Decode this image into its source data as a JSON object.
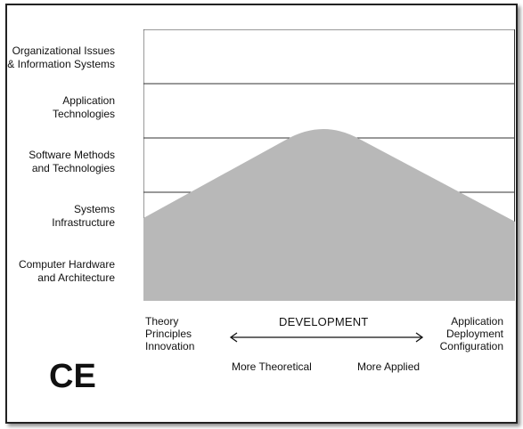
{
  "rows": [
    {
      "line1": "Organizational Issues",
      "line2": "& Information Systems"
    },
    {
      "line1": "Application",
      "line2": "Technologies"
    },
    {
      "line1": "Software Methods",
      "line2": "and Technologies"
    },
    {
      "line1": "Systems",
      "line2": "Infrastructure"
    },
    {
      "line1": "Computer Hardware",
      "line2": "and Architecture"
    }
  ],
  "left_axis": {
    "line1": "Theory",
    "line2": "Principles",
    "line3": "Innovation"
  },
  "right_axis": {
    "line1": "Application",
    "line2": "Deployment",
    "line3": "Configuration"
  },
  "center_label": "DEVELOPMENT",
  "bottom_left_label": "More Theoretical",
  "bottom_right_label": "More Applied",
  "discipline": "CE",
  "colors": {
    "fill": "#b8b8b8",
    "line": "#333333"
  }
}
